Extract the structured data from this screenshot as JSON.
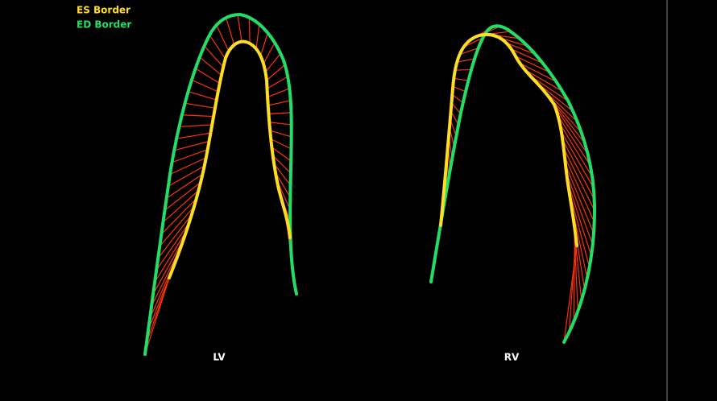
{
  "legend": [
    {
      "label": "ES Border"
    },
    {
      "label": "ED Border"
    }
  ],
  "views": [
    {
      "label": "LV"
    },
    {
      "label": "RV"
    }
  ]
}
